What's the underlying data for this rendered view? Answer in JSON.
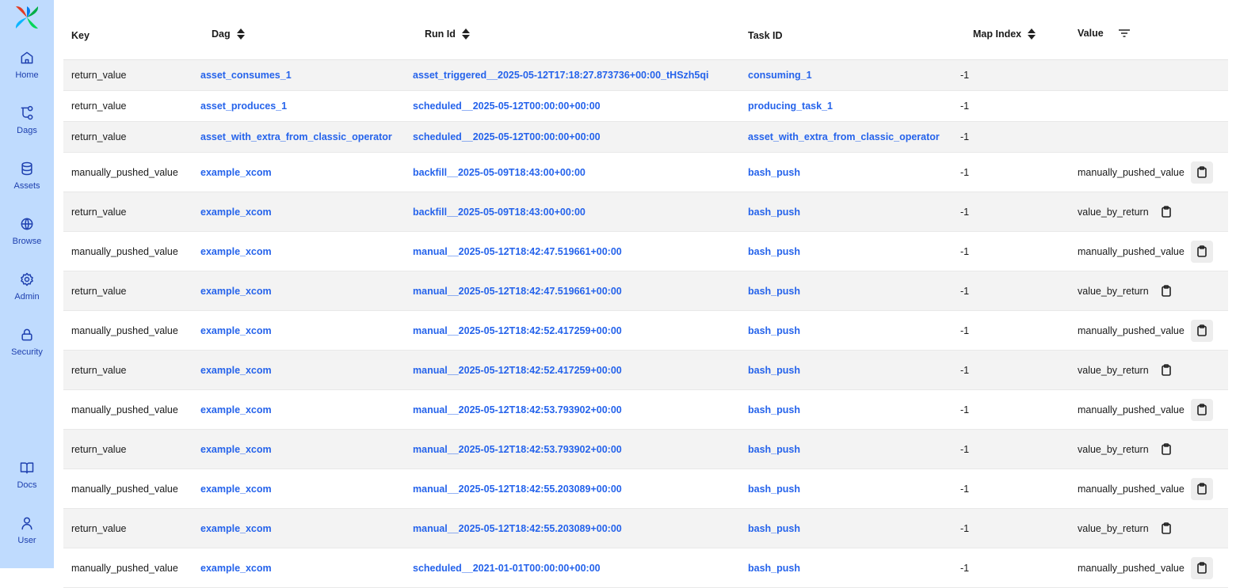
{
  "sidebar": {
    "items": [
      {
        "label": "Home",
        "icon": "home-icon"
      },
      {
        "label": "Dags",
        "icon": "dag-icon"
      },
      {
        "label": "Assets",
        "icon": "database-icon"
      },
      {
        "label": "Browse",
        "icon": "globe-icon"
      },
      {
        "label": "Admin",
        "icon": "gear-icon"
      },
      {
        "label": "Security",
        "icon": "lock-icon"
      },
      {
        "label": "Docs",
        "icon": "book-icon"
      },
      {
        "label": "User",
        "icon": "user-icon"
      }
    ]
  },
  "table": {
    "headers": {
      "key": "Key",
      "dag": "Dag",
      "run_id": "Run Id",
      "task_id": "Task ID",
      "map_index": "Map Index",
      "value": "Value"
    },
    "rows": [
      {
        "key": "return_value",
        "dag": "asset_consumes_1",
        "run_id": "asset_triggered__2025-05-12T17:18:27.873736+00:00_tHSzh5qi",
        "task_id": "consuming_1",
        "map_index": "-1",
        "value": ""
      },
      {
        "key": "return_value",
        "dag": "asset_produces_1",
        "run_id": "scheduled__2025-05-12T00:00:00+00:00",
        "task_id": "producing_task_1",
        "map_index": "-1",
        "value": ""
      },
      {
        "key": "return_value",
        "dag": "asset_with_extra_from_classic_operator",
        "run_id": "scheduled__2025-05-12T00:00:00+00:00",
        "task_id": "asset_with_extra_from_classic_operator",
        "map_index": "-1",
        "value": ""
      },
      {
        "key": "manually_pushed_value",
        "dag": "example_xcom",
        "run_id": "backfill__2025-05-09T18:43:00+00:00",
        "task_id": "bash_push",
        "map_index": "-1",
        "value": "manually_pushed_value"
      },
      {
        "key": "return_value",
        "dag": "example_xcom",
        "run_id": "backfill__2025-05-09T18:43:00+00:00",
        "task_id": "bash_push",
        "map_index": "-1",
        "value": "value_by_return"
      },
      {
        "key": "manually_pushed_value",
        "dag": "example_xcom",
        "run_id": "manual__2025-05-12T18:42:47.519661+00:00",
        "task_id": "bash_push",
        "map_index": "-1",
        "value": "manually_pushed_value"
      },
      {
        "key": "return_value",
        "dag": "example_xcom",
        "run_id": "manual__2025-05-12T18:42:47.519661+00:00",
        "task_id": "bash_push",
        "map_index": "-1",
        "value": "value_by_return"
      },
      {
        "key": "manually_pushed_value",
        "dag": "example_xcom",
        "run_id": "manual__2025-05-12T18:42:52.417259+00:00",
        "task_id": "bash_push",
        "map_index": "-1",
        "value": "manually_pushed_value"
      },
      {
        "key": "return_value",
        "dag": "example_xcom",
        "run_id": "manual__2025-05-12T18:42:52.417259+00:00",
        "task_id": "bash_push",
        "map_index": "-1",
        "value": "value_by_return"
      },
      {
        "key": "manually_pushed_value",
        "dag": "example_xcom",
        "run_id": "manual__2025-05-12T18:42:53.793902+00:00",
        "task_id": "bash_push",
        "map_index": "-1",
        "value": "manually_pushed_value"
      },
      {
        "key": "return_value",
        "dag": "example_xcom",
        "run_id": "manual__2025-05-12T18:42:53.793902+00:00",
        "task_id": "bash_push",
        "map_index": "-1",
        "value": "value_by_return"
      },
      {
        "key": "manually_pushed_value",
        "dag": "example_xcom",
        "run_id": "manual__2025-05-12T18:42:55.203089+00:00",
        "task_id": "bash_push",
        "map_index": "-1",
        "value": "manually_pushed_value"
      },
      {
        "key": "return_value",
        "dag": "example_xcom",
        "run_id": "manual__2025-05-12T18:42:55.203089+00:00",
        "task_id": "bash_push",
        "map_index": "-1",
        "value": "value_by_return"
      },
      {
        "key": "manually_pushed_value",
        "dag": "example_xcom",
        "run_id": "scheduled__2021-01-01T00:00:00+00:00",
        "task_id": "bash_push",
        "map_index": "-1",
        "value": "manually_pushed_value"
      }
    ]
  }
}
